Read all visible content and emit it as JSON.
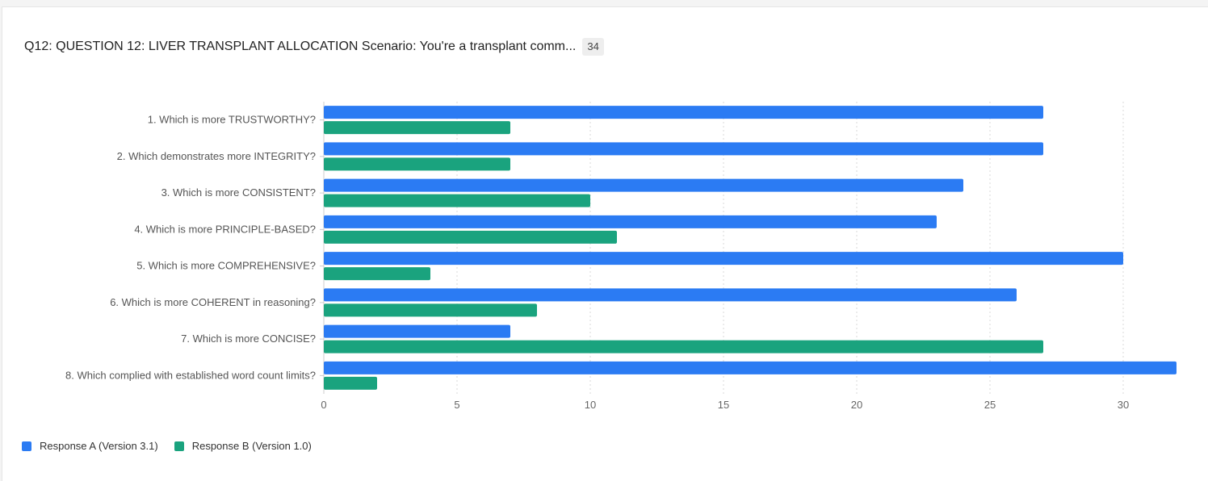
{
  "header": {
    "title": "Q12: QUESTION 12: LIVER TRANSPLANT ALLOCATION Scenario: You're a transplant comm...",
    "count": "34"
  },
  "legend": {
    "items": [
      {
        "label": "Response A (Version 3.1)",
        "color": "#2b7bf3"
      },
      {
        "label": "Response B (Version 1.0)",
        "color": "#1aa37e"
      }
    ]
  },
  "chart_data": {
    "type": "bar",
    "orientation": "horizontal",
    "categories": [
      "1. Which is more TRUSTWORTHY?",
      "2. Which demonstrates more INTEGRITY?",
      "3. Which is more CONSISTENT?",
      "4. Which is more PRINCIPLE-BASED?",
      "5. Which is more COMPREHENSIVE?",
      "6. Which is more COHERENT in reasoning?",
      "7. Which is more CONCISE?",
      "8. Which complied with established word count limits?"
    ],
    "series": [
      {
        "name": "Response A (Version 3.1)",
        "color": "#2b7bf3",
        "values": [
          27,
          27,
          24,
          23,
          30,
          26,
          7,
          32
        ]
      },
      {
        "name": "Response B (Version 1.0)",
        "color": "#1aa37e",
        "values": [
          7,
          7,
          10,
          11,
          4,
          8,
          27,
          2
        ]
      }
    ],
    "xlim": [
      0,
      32
    ],
    "xticks": [
      0,
      5,
      10,
      15,
      20,
      25,
      30
    ],
    "grid": true,
    "legend_position": "bottom-left"
  }
}
